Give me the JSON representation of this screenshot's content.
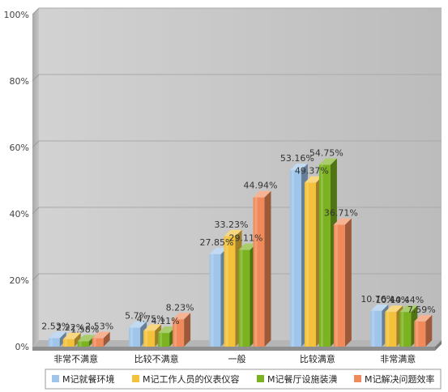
{
  "chart_data": {
    "type": "bar",
    "style": "3d-clustered",
    "categories": [
      "非常不满意",
      "比较不满意",
      "一般",
      "比较满意",
      "非常满意"
    ],
    "series": [
      {
        "name": "M记就餐环境",
        "color": "#9fc5ea",
        "values": [
          2.53,
          5.7,
          27.85,
          53.16,
          10.76
        ],
        "labels": [
          "2.53%",
          "5.7%",
          "27.85%",
          "53.16%",
          "10.76%"
        ]
      },
      {
        "name": "M记工作人员的仪表仪容",
        "color": "#f3c23a",
        "values": [
          2.22,
          4.75,
          33.23,
          49.37,
          10.44
        ],
        "labels": [
          "2.22%",
          "4.75%",
          "33.23%",
          "49.37%",
          "10.44%"
        ]
      },
      {
        "name": "M记餐厅设施装潢",
        "color": "#7bb21f",
        "values": [
          1.58,
          4.11,
          29.11,
          54.75,
          10.44
        ],
        "labels": [
          "1.58%",
          "4.11%",
          "29.11%",
          "54.75%",
          "10.44%"
        ]
      },
      {
        "name": "M记解决问题效率",
        "color": "#f08a5a",
        "values": [
          2.53,
          8.23,
          44.94,
          36.71,
          7.59
        ],
        "labels": [
          "2.53%",
          "8.23%",
          "44.94%",
          "36.71%",
          "7.59%"
        ]
      }
    ],
    "y_ticks": [
      "0%",
      "20%",
      "40%",
      "60%",
      "80%",
      "100%"
    ],
    "ylim": [
      0,
      100
    ],
    "grid": true,
    "legend_position": "bottom"
  }
}
